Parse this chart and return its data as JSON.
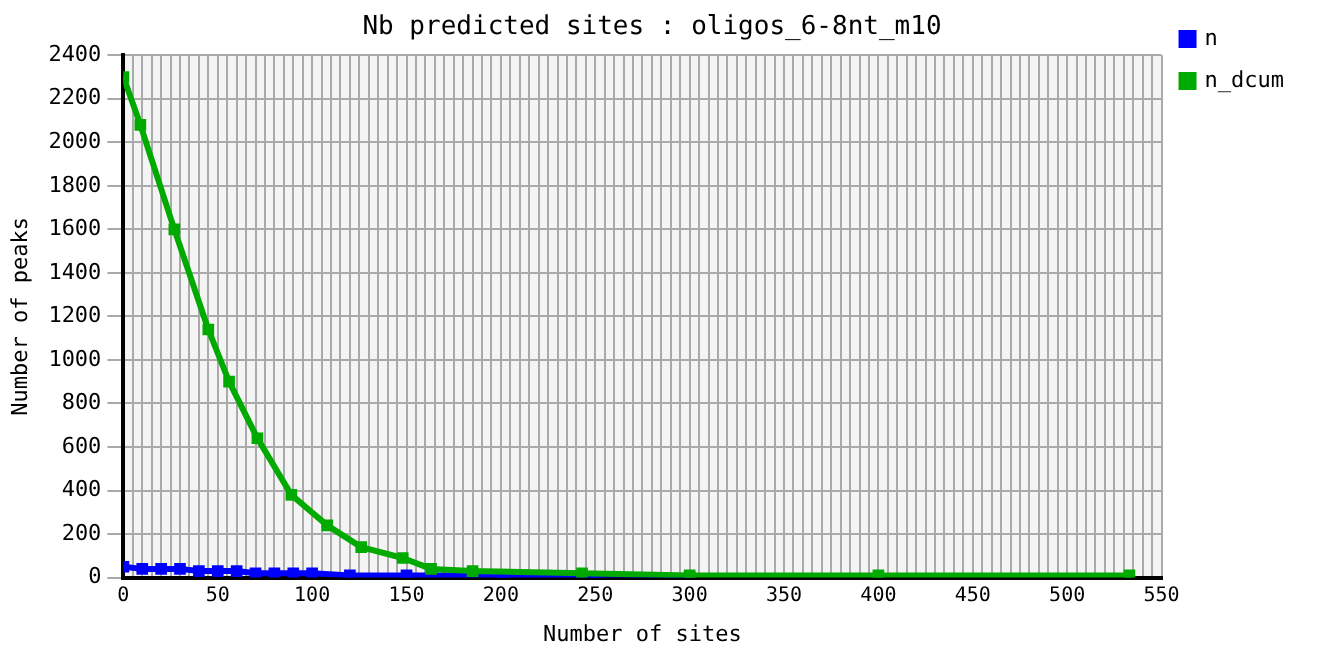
{
  "chart_data": {
    "type": "line",
    "title": "Nb predicted sites : oligos_6-8nt_m10",
    "xlabel": "Number of sites",
    "ylabel": "Number of peaks",
    "series": [
      {
        "name": "n",
        "color": "#0000ff",
        "x": [
          0,
          10,
          20,
          30,
          40,
          50,
          60,
          70,
          80,
          90,
          100,
          120,
          150,
          200,
          250,
          300
        ],
        "values": [
          50,
          40,
          40,
          40,
          30,
          30,
          30,
          20,
          20,
          20,
          20,
          10,
          10,
          10,
          0,
          0
        ]
      },
      {
        "name": "n_dcum",
        "color": "#00aa00",
        "x": [
          0,
          9,
          27,
          45,
          56,
          71,
          89,
          108,
          126,
          148,
          163,
          185,
          243,
          300,
          400,
          533
        ],
        "values": [
          2300,
          2080,
          1600,
          1140,
          900,
          640,
          380,
          240,
          140,
          90,
          40,
          30,
          20,
          10,
          10,
          10
        ]
      }
    ],
    "xlim": [
      0,
      550
    ],
    "xticks": [
      0,
      {
        "value": 5,
        "label": null
      },
      {
        "value": 10,
        "label": null
      },
      {
        "value": 15,
        "label": null
      },
      {
        "value": 20,
        "label": null
      },
      {
        "value": 25,
        "label": null
      },
      {
        "value": 30,
        "label": null
      },
      {
        "value": 35,
        "label": null
      },
      {
        "value": 40,
        "label": null
      },
      {
        "value": 45,
        "label": null
      },
      50,
      {
        "value": 55,
        "label": null
      },
      {
        "value": 60,
        "label": null
      },
      {
        "value": 65,
        "label": null
      },
      {
        "value": 70,
        "label": null
      },
      {
        "value": 75,
        "label": null
      },
      {
        "value": 80,
        "label": null
      },
      {
        "value": 85,
        "label": null
      },
      {
        "value": 90,
        "label": null
      },
      {
        "value": 95,
        "label": null
      },
      100,
      {
        "value": 105,
        "label": null
      },
      {
        "value": 110,
        "label": null
      },
      {
        "value": 115,
        "label": null
      },
      {
        "value": 120,
        "label": null
      },
      {
        "value": 125,
        "label": null
      },
      {
        "value": 130,
        "label": null
      },
      {
        "value": 135,
        "label": null
      },
      {
        "value": 140,
        "label": null
      },
      {
        "value": 145,
        "label": null
      },
      150,
      {
        "value": 155,
        "label": null
      },
      {
        "value": 160,
        "label": null
      },
      {
        "value": 165,
        "label": null
      },
      {
        "value": 170,
        "label": null
      },
      {
        "value": 175,
        "label": null
      },
      {
        "value": 180,
        "label": null
      },
      {
        "value": 185,
        "label": null
      },
      {
        "value": 190,
        "label": null
      },
      {
        "value": 195,
        "label": null
      },
      200,
      {
        "value": 205,
        "label": null
      },
      {
        "value": 210,
        "label": null
      },
      {
        "value": 215,
        "label": null
      },
      {
        "value": 220,
        "label": null
      },
      {
        "value": 225,
        "label": null
      },
      {
        "value": 230,
        "label": null
      },
      {
        "value": 235,
        "label": null
      },
      {
        "value": 240,
        "label": null
      },
      {
        "value": 245,
        "label": null
      },
      250,
      {
        "value": 255,
        "label": null
      },
      {
        "value": 260,
        "label": null
      },
      {
        "value": 265,
        "label": null
      },
      {
        "value": 270,
        "label": null
      },
      {
        "value": 275,
        "label": null
      },
      {
        "value": 280,
        "label": null
      },
      {
        "value": 285,
        "label": null
      },
      {
        "value": 290,
        "label": null
      },
      {
        "value": 295,
        "label": null
      },
      300,
      {
        "value": 305,
        "label": null
      },
      {
        "value": 310,
        "label": null
      },
      {
        "value": 315,
        "label": null
      },
      {
        "value": 320,
        "label": null
      },
      {
        "value": 325,
        "label": null
      },
      {
        "value": 330,
        "label": null
      },
      {
        "value": 335,
        "label": null
      },
      {
        "value": 340,
        "label": null
      },
      {
        "value": 345,
        "label": null
      },
      350,
      {
        "value": 355,
        "label": null
      },
      {
        "value": 360,
        "label": null
      },
      {
        "value": 365,
        "label": null
      },
      {
        "value": 370,
        "label": null
      },
      {
        "value": 375,
        "label": null
      },
      {
        "value": 380,
        "label": null
      },
      {
        "value": 385,
        "label": null
      },
      {
        "value": 390,
        "label": null
      },
      {
        "value": 395,
        "label": null
      },
      400,
      {
        "value": 405,
        "label": null
      },
      {
        "value": 410,
        "label": null
      },
      {
        "value": 415,
        "label": null
      },
      {
        "value": 420,
        "label": null
      },
      {
        "value": 425,
        "label": null
      },
      {
        "value": 430,
        "label": null
      },
      {
        "value": 435,
        "label": null
      },
      {
        "value": 440,
        "label": null
      },
      {
        "value": 445,
        "label": null
      },
      450,
      {
        "value": 455,
        "label": null
      },
      {
        "value": 460,
        "label": null
      },
      {
        "value": 465,
        "label": null
      },
      {
        "value": 470,
        "label": null
      },
      {
        "value": 475,
        "label": null
      },
      {
        "value": 480,
        "label": null
      },
      {
        "value": 485,
        "label": null
      },
      {
        "value": 490,
        "label": null
      },
      {
        "value": 495,
        "label": null
      },
      500,
      {
        "value": 505,
        "label": null
      },
      {
        "value": 510,
        "label": null
      },
      {
        "value": 515,
        "label": null
      },
      {
        "value": 520,
        "label": null
      },
      {
        "value": 525,
        "label": null
      },
      {
        "value": 530,
        "label": null
      },
      {
        "value": 535,
        "label": null
      },
      {
        "value": 540,
        "label": null
      },
      {
        "value": 545,
        "label": null
      },
      550
    ],
    "ylim": [
      0,
      2400
    ],
    "yticks": [
      0,
      200,
      400,
      600,
      800,
      1000,
      1200,
      1400,
      1600,
      1800,
      2000,
      2200,
      2400
    ],
    "grid": true,
    "legend": "top right",
    "marker": "square",
    "line_style": "solid"
  }
}
